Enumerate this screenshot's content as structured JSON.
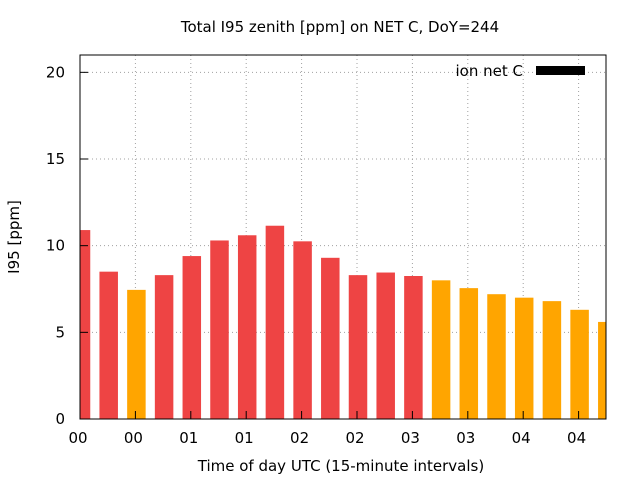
{
  "chart_data": {
    "type": "bar",
    "title": "Total I95 zenith [ppm] on NET C, DoY=244",
    "xlabel": "Time of day UTC (15-minute intervals)",
    "ylabel": "I95 [ppm]",
    "ylim": [
      0,
      21
    ],
    "yticks": [
      0,
      5,
      10,
      15,
      20
    ],
    "xtick_labels": [
      "00",
      "00",
      "01",
      "01",
      "02",
      "02",
      "03",
      "03",
      "04",
      "04"
    ],
    "grid": true,
    "legend": {
      "label": "ion net C",
      "color": "#000000",
      "position": "top-right"
    },
    "colors": {
      "high": "#ee4444",
      "low": "#ffa500"
    },
    "values": [
      10.9,
      8.5,
      7.45,
      8.3,
      9.4,
      10.3,
      10.6,
      11.15,
      10.25,
      9.3,
      8.3,
      8.45,
      8.25,
      8.0,
      7.55,
      7.2,
      7.0,
      6.8,
      6.3,
      5.6
    ],
    "bar_colors": [
      "high",
      "high",
      "low",
      "high",
      "high",
      "high",
      "high",
      "high",
      "high",
      "high",
      "high",
      "high",
      "high",
      "low",
      "low",
      "low",
      "low",
      "low",
      "low",
      "low"
    ]
  }
}
